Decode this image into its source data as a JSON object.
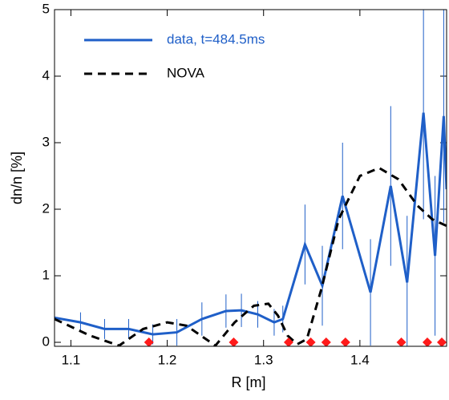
{
  "chart_data": {
    "type": "line",
    "xlabel": "R  [m]",
    "ylabel": "dn/n [%]",
    "xlim": [
      1.083,
      1.49
    ],
    "ylim": [
      -0.06,
      5
    ],
    "xticks": [
      1.1,
      1.2,
      1.3,
      1.4
    ],
    "yticks": [
      0,
      1,
      2,
      3,
      4,
      5
    ],
    "grid": false,
    "legend": "upper left",
    "series": [
      {
        "name": "data, t=484.5ms",
        "color": "#1f5fc8",
        "x": [
          1.083,
          1.11,
          1.135,
          1.16,
          1.185,
          1.21,
          1.236,
          1.261,
          1.277,
          1.294,
          1.311,
          1.32,
          1.343,
          1.361,
          1.382,
          1.411,
          1.432,
          1.449,
          1.466,
          1.478,
          1.487,
          1.49
        ],
        "values": [
          0.37,
          0.3,
          0.2,
          0.2,
          0.12,
          0.15,
          0.35,
          0.47,
          0.48,
          0.42,
          0.3,
          0.35,
          1.47,
          0.85,
          2.2,
          0.75,
          2.35,
          0.9,
          3.45,
          1.3,
          3.4,
          2.3
        ],
        "errors": [
          0.15,
          0.15,
          0.15,
          0.15,
          0.15,
          0.2,
          0.25,
          0.25,
          0.25,
          0.2,
          0.2,
          0.2,
          0.6,
          0.6,
          0.8,
          0.8,
          1.2,
          1.0,
          1.6,
          1.2,
          1.6,
          1.2
        ]
      },
      {
        "name": "NOVA",
        "color": "#000000",
        "dash": true,
        "x": [
          1.083,
          1.12,
          1.15,
          1.175,
          1.2,
          1.22,
          1.24,
          1.25,
          1.27,
          1.29,
          1.305,
          1.315,
          1.325,
          1.335,
          1.345,
          1.36,
          1.378,
          1.4,
          1.42,
          1.44,
          1.46,
          1.475,
          1.49
        ],
        "values": [
          0.35,
          0.1,
          -0.05,
          0.2,
          0.3,
          0.25,
          0.05,
          -0.05,
          0.3,
          0.55,
          0.58,
          0.4,
          0.1,
          -0.03,
          0.05,
          0.8,
          1.85,
          2.5,
          2.62,
          2.45,
          2.05,
          1.85,
          1.75
        ]
      },
      {
        "color": "#ff1a1a",
        "marker": "diamond",
        "x": [
          1.181,
          1.269,
          1.326,
          1.349,
          1.365,
          1.385,
          1.443,
          1.47,
          1.485
        ],
        "values": [
          0,
          0,
          0,
          0,
          0,
          0,
          0,
          0,
          0
        ]
      }
    ]
  }
}
